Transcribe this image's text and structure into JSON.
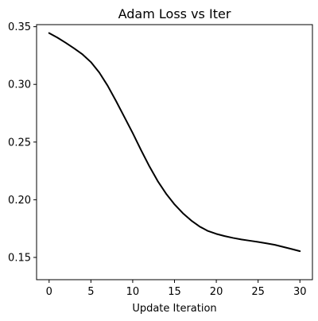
{
  "chart_data": {
    "type": "line",
    "title": "Adam Loss vs Iter",
    "xlabel": "Update Iteration",
    "ylabel": "",
    "xlim": [
      -1.5,
      31.5
    ],
    "ylim": [
      0.1307,
      0.3518
    ],
    "xticks": [
      0,
      5,
      10,
      15,
      20,
      25,
      30
    ],
    "xtick_labels": [
      "0",
      "5",
      "10",
      "15",
      "20",
      "25",
      "30"
    ],
    "yticks": [
      0.15,
      0.2,
      0.25,
      0.3,
      0.35
    ],
    "ytick_labels": [
      "0.15",
      "0.20",
      "0.25",
      "0.30",
      "0.35"
    ],
    "grid": false,
    "legend": "none",
    "series": [
      {
        "color": "#000000",
        "x": [
          0,
          1,
          2,
          3,
          4,
          5,
          6,
          7,
          8,
          9,
          10,
          11,
          12,
          13,
          14,
          15,
          16,
          17,
          18,
          19,
          20,
          21,
          22,
          23,
          24,
          25,
          26,
          27,
          28,
          29,
          30
        ],
        "y": [
          0.3445,
          0.3405,
          0.336,
          0.3312,
          0.326,
          0.3193,
          0.3103,
          0.2989,
          0.2857,
          0.2718,
          0.2578,
          0.243,
          0.2289,
          0.2161,
          0.2052,
          0.196,
          0.1883,
          0.182,
          0.1768,
          0.1729,
          0.1704,
          0.1685,
          0.1669,
          0.1656,
          0.1645,
          0.1634,
          0.1622,
          0.1609,
          0.1591,
          0.1573,
          0.1554
        ]
      }
    ]
  }
}
